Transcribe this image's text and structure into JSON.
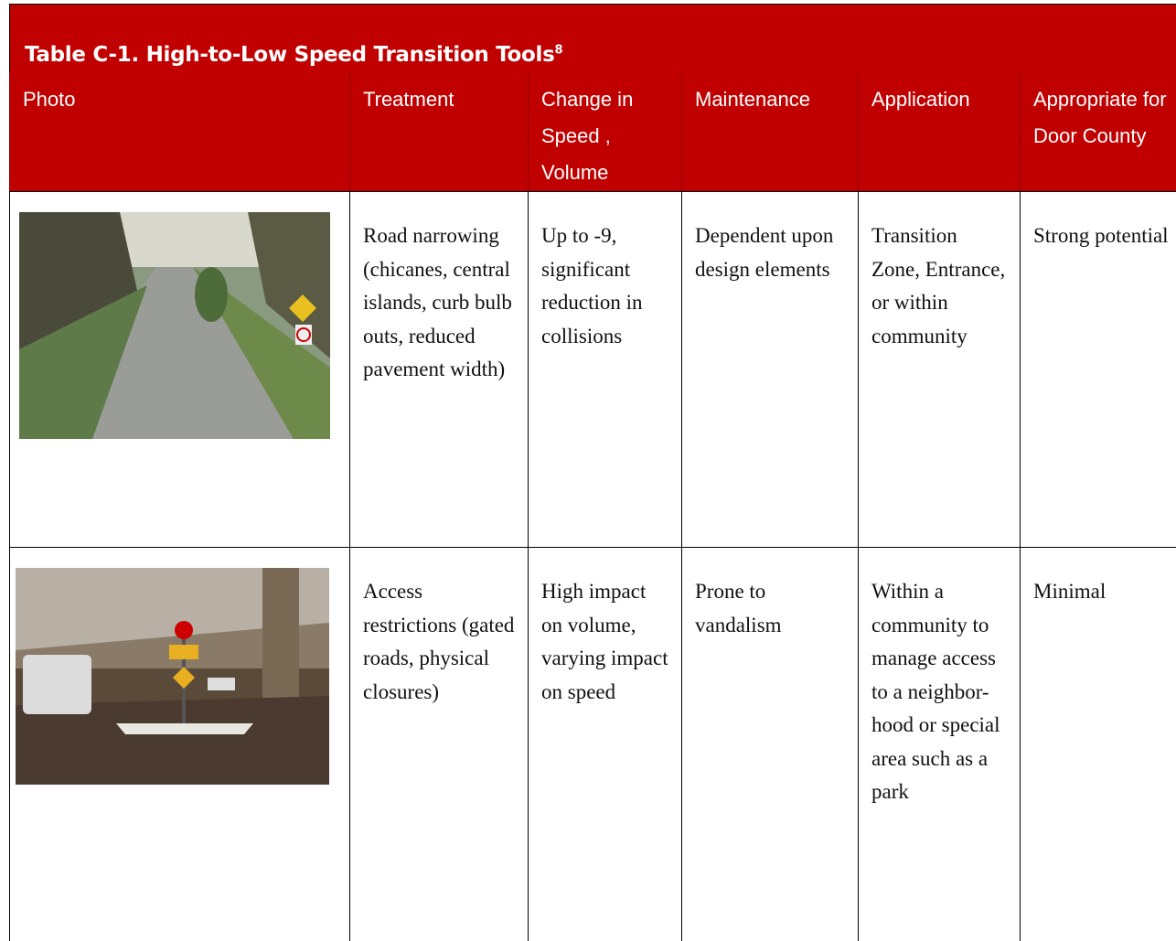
{
  "table": {
    "title": "Table C-1. High-to-Low Speed Transition Tools",
    "title_note": "8",
    "headers": [
      "Photo",
      "Treatment",
      "Change in Speed , Volume",
      "Maintenance",
      "Application",
      "Appropriate for Door County"
    ],
    "rows": [
      [
        "Road narrowing (chicanes, central islands, curb bulb outs, reduced pavement width)",
        "Up to -9, significant reduction in collisions",
        "Dependent upon design elements",
        "Transition Zone, Entrance, or within community",
        "Strong potential"
      ],
      [
        "Access restrictions (gated roads, physical closures)",
        "High impact on volume, varying impact on speed",
        "Prone to vandalism",
        "Within a community to manage access to a neighbor-hood or special area such as a park",
        "Minimal"
      ]
    ]
  }
}
